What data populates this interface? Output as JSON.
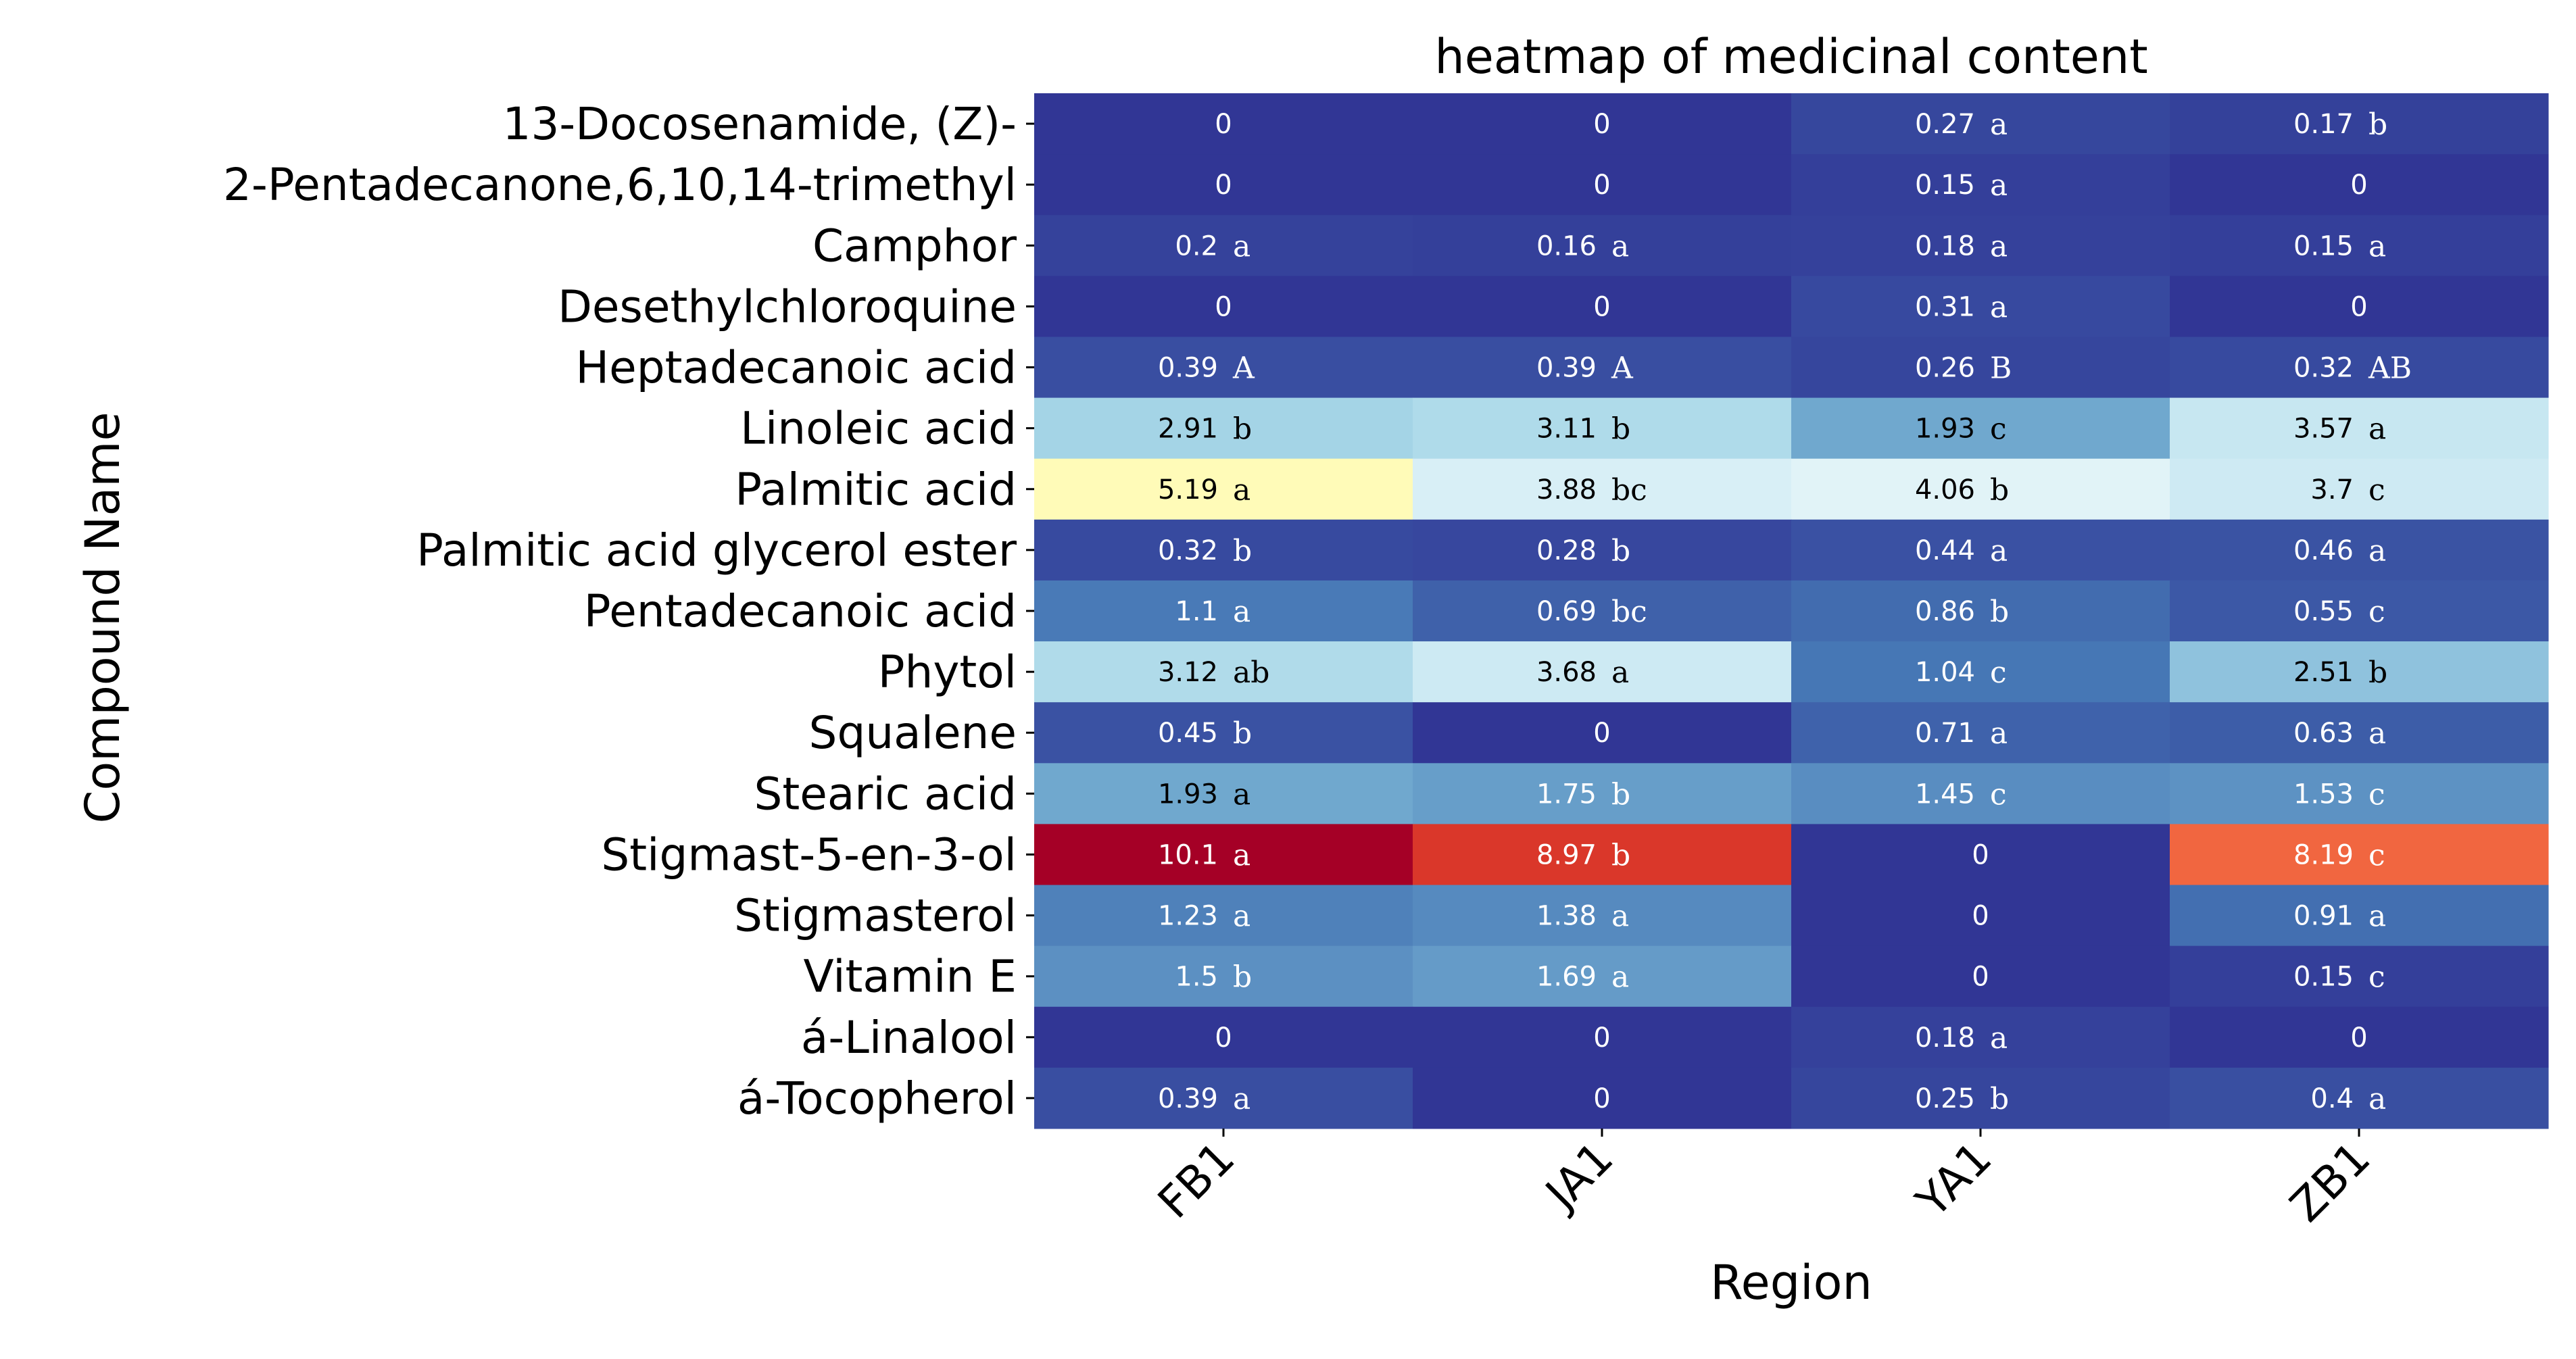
{
  "chart_data": {
    "type": "heatmap",
    "title": "heatmap of medicinal content",
    "xlabel": "Region",
    "ylabel": "Compound Name",
    "categories": [
      "FB1",
      "JA1",
      "YA1",
      "ZB1"
    ],
    "rows": [
      "13-Docosenamide, (Z)-",
      "2-Pentadecanone,6,10,14-trimethyl",
      "Camphor",
      "Desethylchloroquine",
      "Heptadecanoic acid",
      "Linoleic acid",
      "Palmitic acid",
      "Palmitic acid glycerol ester",
      "Pentadecanoic acid",
      "Phytol ",
      "Squalene",
      "Stearic acid",
      "Stigmast-5-en-3-ol",
      "Stigmasterol",
      "Vitamin E",
      "á-Linalool",
      "á-Tocopherol"
    ],
    "values": [
      [
        0,
        0,
        0.27,
        0.17
      ],
      [
        0,
        0,
        0.15,
        0
      ],
      [
        0.2,
        0.16,
        0.18,
        0.15
      ],
      [
        0,
        0,
        0.31,
        0
      ],
      [
        0.39,
        0.39,
        0.26,
        0.32
      ],
      [
        2.91,
        3.11,
        1.93,
        3.57
      ],
      [
        5.19,
        3.88,
        4.06,
        3.7
      ],
      [
        0.32,
        0.28,
        0.44,
        0.46
      ],
      [
        1.1,
        0.69,
        0.86,
        0.55
      ],
      [
        3.12,
        3.68,
        1.04,
        2.51
      ],
      [
        0.45,
        0,
        0.71,
        0.63
      ],
      [
        1.93,
        1.75,
        1.45,
        1.53
      ],
      [
        10.1,
        8.97,
        0,
        8.19
      ],
      [
        1.23,
        1.38,
        0,
        0.91
      ],
      [
        1.5,
        1.69,
        0,
        0.15
      ],
      [
        0,
        0,
        0.18,
        0
      ],
      [
        0.39,
        0,
        0.25,
        0.4
      ]
    ],
    "value_labels": [
      [
        "0",
        "0",
        "0.27",
        "0.17"
      ],
      [
        "0",
        "0",
        "0.15",
        "0"
      ],
      [
        "0.2",
        "0.16",
        "0.18",
        "0.15"
      ],
      [
        "0",
        "0",
        "0.31",
        "0"
      ],
      [
        "0.39",
        "0.39",
        "0.26",
        "0.32"
      ],
      [
        "2.91",
        "3.11",
        "1.93",
        "3.57"
      ],
      [
        "5.19",
        "3.88",
        "4.06",
        "3.7"
      ],
      [
        "0.32",
        "0.28",
        "0.44",
        "0.46"
      ],
      [
        "1.1",
        "0.69",
        "0.86",
        "0.55"
      ],
      [
        "3.12",
        "3.68",
        "1.04",
        "2.51"
      ],
      [
        "0.45",
        "0",
        "0.71",
        "0.63"
      ],
      [
        "1.93",
        "1.75",
        "1.45",
        "1.53"
      ],
      [
        "10.1",
        "8.97",
        "0",
        "8.19"
      ],
      [
        "1.23",
        "1.38",
        "0",
        "0.91"
      ],
      [
        "1.5",
        "1.69",
        "0",
        "0.15"
      ],
      [
        "0",
        "0",
        "0.18",
        "0"
      ],
      [
        "0.39",
        "0",
        "0.25",
        "0.4"
      ]
    ],
    "significance_letters": [
      [
        "",
        "",
        "a",
        "b"
      ],
      [
        "",
        "",
        "a",
        ""
      ],
      [
        "a",
        "a",
        "a",
        "a"
      ],
      [
        "",
        "",
        "a",
        ""
      ],
      [
        "A",
        "A",
        "B",
        "AB"
      ],
      [
        "b",
        "b",
        "c",
        "a"
      ],
      [
        "a",
        "bc",
        "b",
        "c"
      ],
      [
        "b",
        "b",
        "a",
        "a"
      ],
      [
        "a",
        "bc",
        "b",
        "c"
      ],
      [
        "ab",
        "a",
        "c",
        "b"
      ],
      [
        "b",
        "",
        "a",
        "a"
      ],
      [
        "a",
        "b",
        "c",
        "c"
      ],
      [
        "a",
        "b",
        "",
        "c"
      ],
      [
        "a",
        "a",
        "",
        "a"
      ],
      [
        "b",
        "a",
        "",
        "c"
      ],
      [
        "",
        "",
        "a",
        ""
      ],
      [
        "a",
        "",
        "b",
        "a"
      ]
    ],
    "colorscale": {
      "name": "RdYlBu_r",
      "vmin": 0,
      "vmax": 10.1,
      "stops": [
        [
          0.0,
          "#313695"
        ],
        [
          0.1,
          "#4575b4"
        ],
        [
          0.2,
          "#74add1"
        ],
        [
          0.3,
          "#abd9e9"
        ],
        [
          0.4,
          "#e0f3f8"
        ],
        [
          0.5,
          "#ffffbf"
        ],
        [
          0.6,
          "#fee090"
        ],
        [
          0.7,
          "#fdae61"
        ],
        [
          0.8,
          "#f46d43"
        ],
        [
          0.9,
          "#d73027"
        ],
        [
          1.0,
          "#a50026"
        ]
      ]
    },
    "grid": false,
    "legend": "none"
  }
}
